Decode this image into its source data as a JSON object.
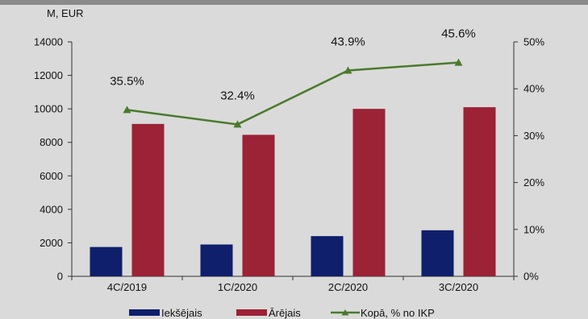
{
  "chart_data": {
    "type": "bar",
    "unit_label": "M, EUR",
    "categories": [
      "4C/2019",
      "1C/2020",
      "2C/2020",
      "3C/2020"
    ],
    "ylim": [
      0,
      14000
    ],
    "y_ticks": [
      "0",
      "2000",
      "4000",
      "6000",
      "8000",
      "10000",
      "12000",
      "14000"
    ],
    "y2lim": [
      0,
      50
    ],
    "y2_ticks": [
      "0%",
      "10%",
      "20%",
      "30%",
      "40%",
      "50%"
    ],
    "series": [
      {
        "name": "Iekšējais",
        "type": "bar",
        "color": "#0f1f6b",
        "values": [
          1750,
          1900,
          2400,
          2750
        ]
      },
      {
        "name": "Ārējais",
        "type": "bar",
        "color": "#9c2236",
        "values": [
          9100,
          8450,
          10000,
          10100
        ]
      },
      {
        "name": "Kopā, % no IKP",
        "type": "line",
        "axis": "right",
        "color": "#4a7a2c",
        "values": [
          35.5,
          32.4,
          43.9,
          45.6
        ],
        "labels": [
          "35.5%",
          "32.4%",
          "43.9%",
          "45.6%"
        ]
      }
    ],
    "grid": false,
    "legend_position": "bottom"
  }
}
